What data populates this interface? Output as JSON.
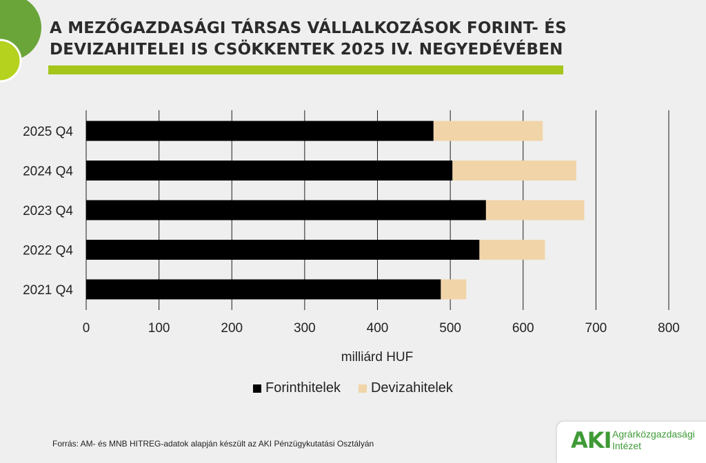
{
  "header": {
    "title_line1": "A MEZŐGAZDASÁGI TÁRSAS VÁLLALKOZÁSOK FORINT- ÉS",
    "title_line2": "DEVIZAHITELEI IS CSÖKKENTEK 2025 IV. NEGYEDÉVÉBEN"
  },
  "colors": {
    "accent_green": "#a6c51b",
    "forint": "#000000",
    "deviza": "#f1d5a8",
    "logo_green": "#3e9a36"
  },
  "chart_data": {
    "type": "bar",
    "orientation": "horizontal",
    "stacked": true,
    "categories": [
      "2025 Q4",
      "2024 Q4",
      "2023 Q4",
      "2022 Q4",
      "2021 Q4"
    ],
    "series": [
      {
        "name": "Forinthitelek",
        "values": [
          477,
          503,
          549,
          540,
          487
        ]
      },
      {
        "name": "Devizahitelek",
        "values": [
          150,
          170,
          135,
          90,
          35
        ]
      }
    ],
    "xlabel": "milliárd HUF",
    "ylabel": "",
    "xlim": [
      0,
      800
    ],
    "xticks": [
      0,
      100,
      200,
      300,
      400,
      500,
      600,
      700,
      800
    ],
    "grid": "vertical",
    "legend": "bottom"
  },
  "footer": {
    "source": "Forrás: AM- és MNB HITREG-adatok alapján készült az AKI Pénzügykutatási Osztályán",
    "logo_mark": "AKI",
    "logo_line1": "Agrárközgazdasági",
    "logo_line2": "Intézet"
  }
}
